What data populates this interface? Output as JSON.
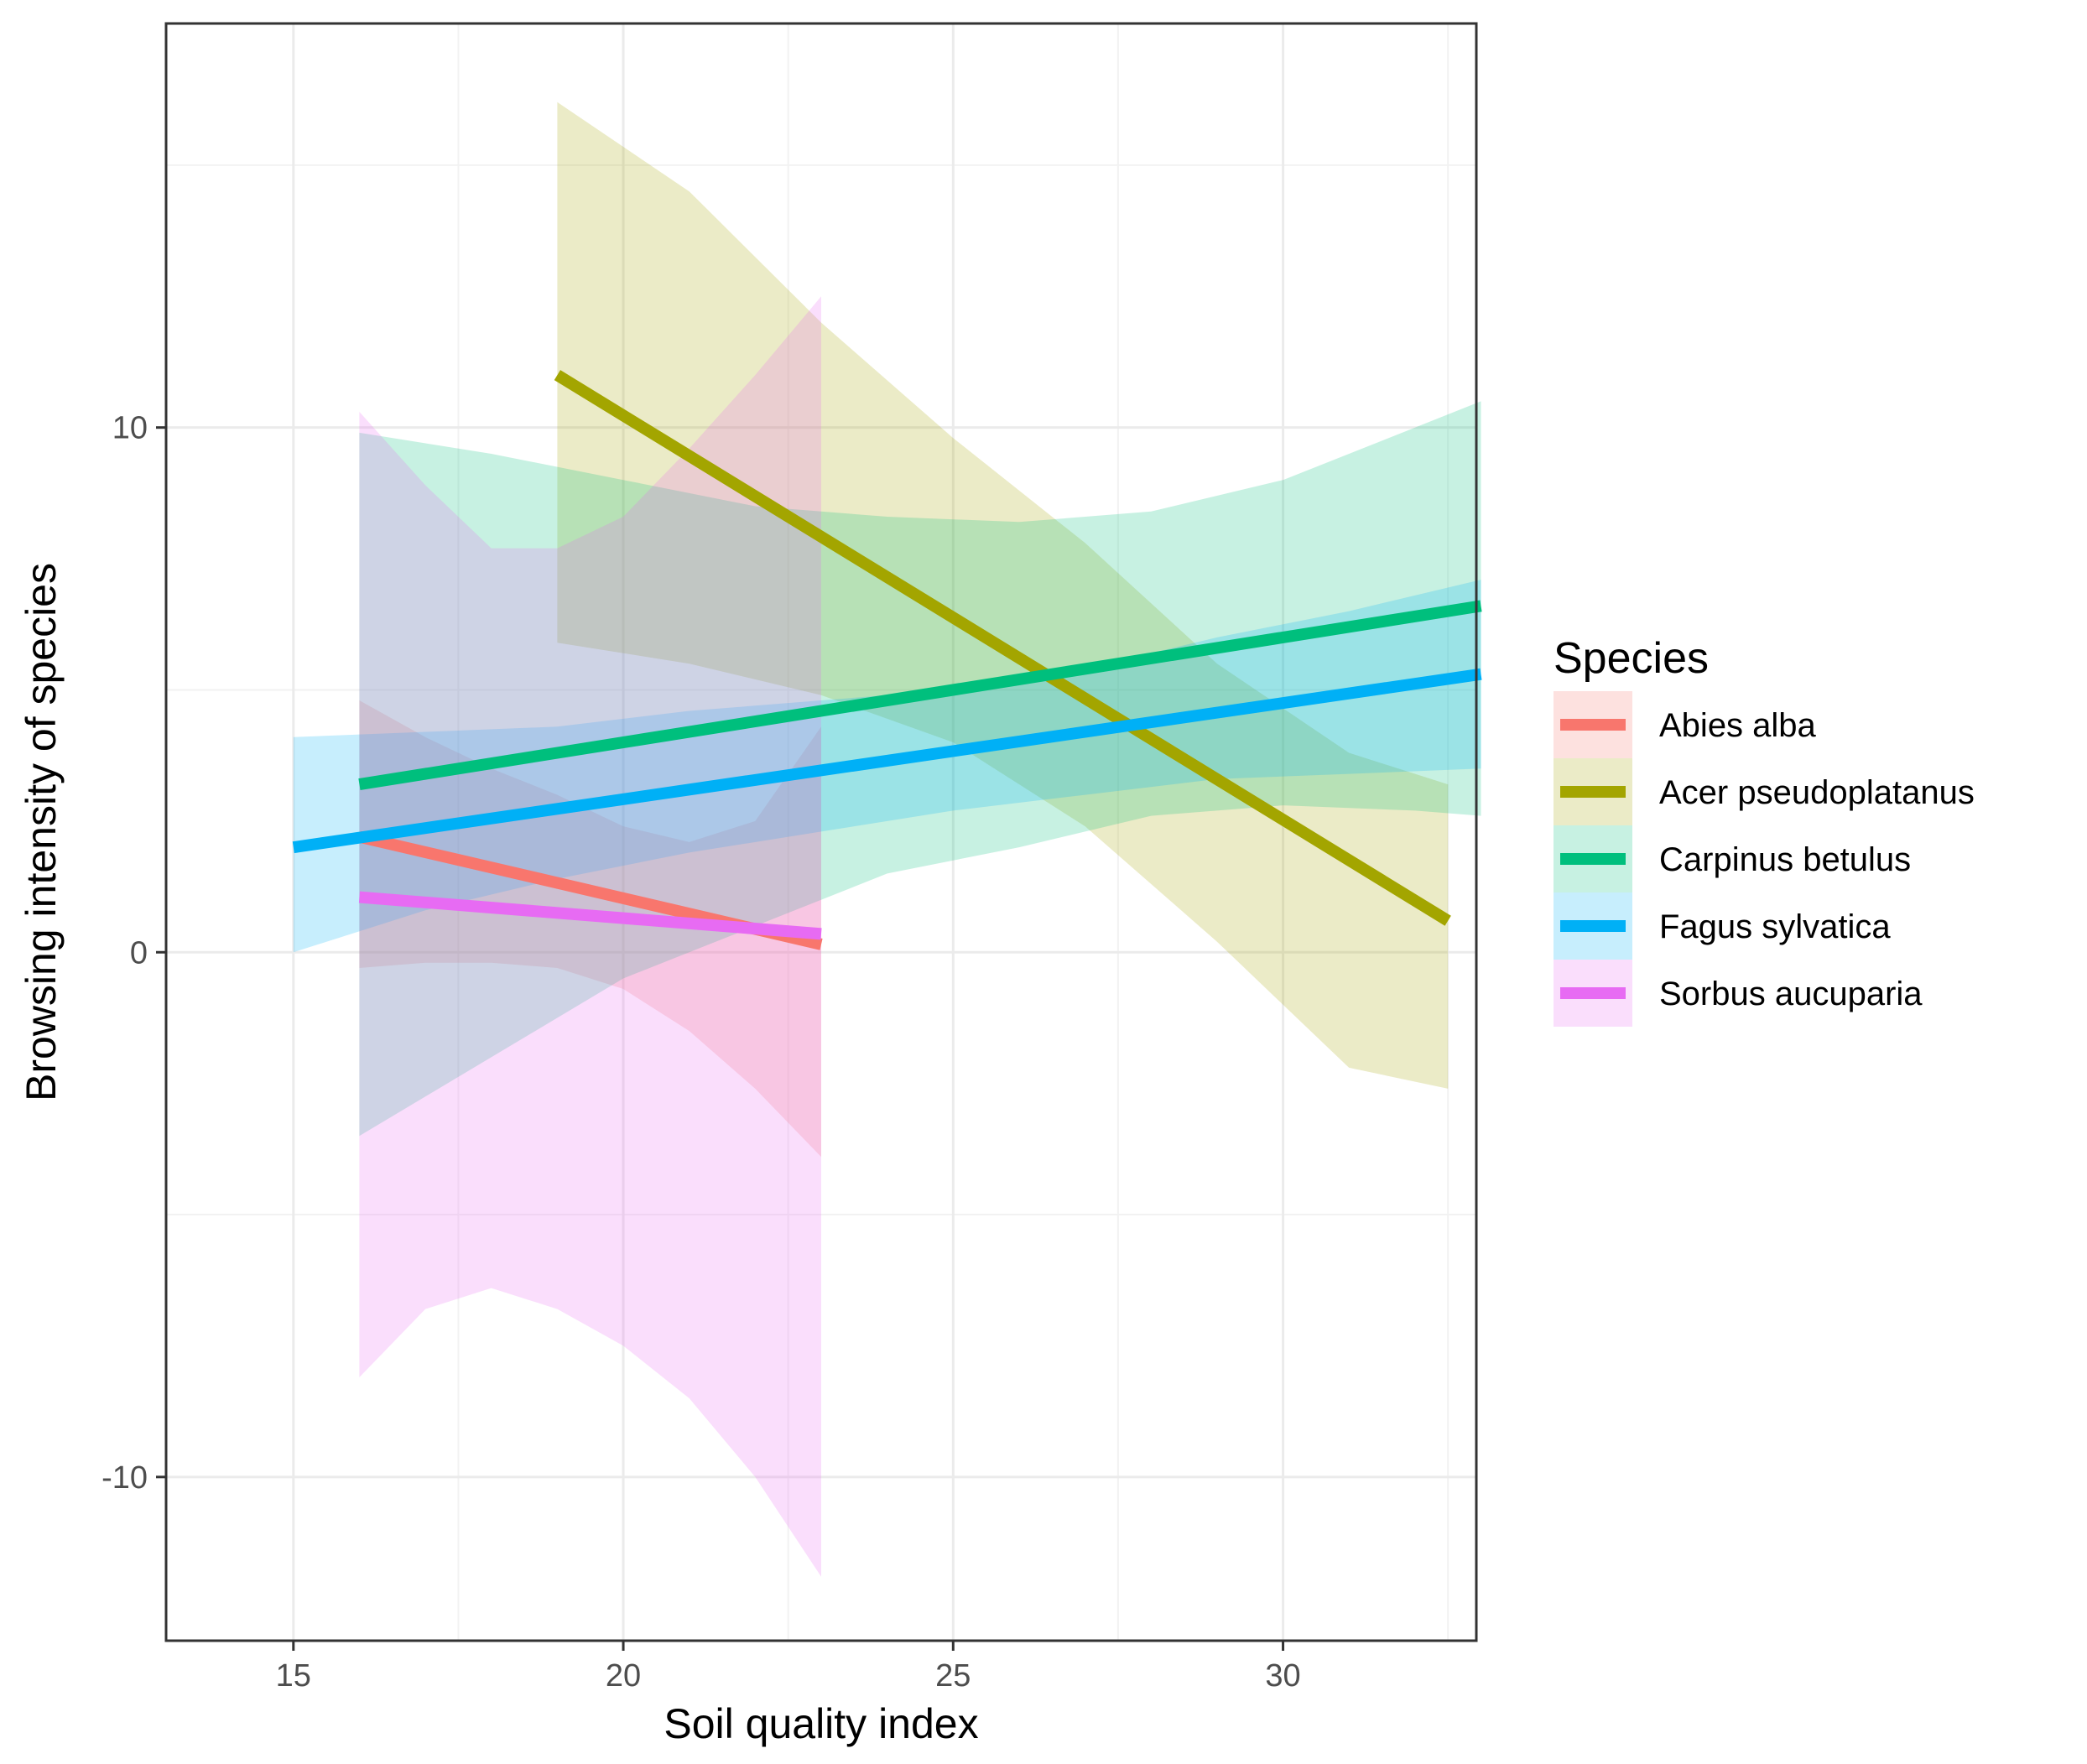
{
  "chart_data": {
    "type": "line",
    "title": "",
    "xlabel": "Soil quality index",
    "ylabel": "Browsing intensity of species",
    "xlim": [
      13.07,
      32.93
    ],
    "ylim": [
      -13.12,
      17.7
    ],
    "x_ticks": [
      15,
      20,
      25,
      30
    ],
    "x_tick_labels": [
      "15",
      "20",
      "25",
      "30"
    ],
    "y_ticks": [
      -10,
      0,
      10
    ],
    "y_tick_labels": [
      "-10",
      "0",
      "10"
    ],
    "grid": true,
    "legend": {
      "title": "Species",
      "position": "right"
    },
    "series": [
      {
        "name": "Abies alba",
        "color": "#F8766D",
        "x": [
          16,
          23
        ],
        "y": [
          2.2,
          0.15
        ],
        "band_x": [
          16,
          17,
          18,
          19,
          20,
          21,
          22,
          23
        ],
        "band_lower": [
          -0.3,
          -0.2,
          -0.2,
          -0.3,
          -0.7,
          -1.5,
          -2.6,
          -3.9
        ],
        "band_upper": [
          4.8,
          4.1,
          3.5,
          3.0,
          2.4,
          2.1,
          2.5,
          4.3
        ]
      },
      {
        "name": "Acer pseudoplatanus",
        "color": "#A3A500",
        "x": [
          19,
          32.5
        ],
        "y": [
          11.0,
          0.6
        ],
        "band_x": [
          19,
          21,
          23,
          25,
          27,
          29,
          31,
          32.5
        ],
        "band_lower": [
          5.9,
          5.5,
          4.9,
          4.0,
          2.4,
          0.2,
          -2.2,
          -2.6
        ],
        "band_upper": [
          16.2,
          14.5,
          12.0,
          9.8,
          7.8,
          5.5,
          3.8,
          3.2
        ]
      },
      {
        "name": "Carpinus betulus",
        "color": "#00BF7D",
        "x": [
          16,
          33
        ],
        "y": [
          3.2,
          6.6
        ],
        "band_x": [
          16,
          18,
          20,
          22,
          24,
          26,
          28,
          30,
          32,
          33
        ],
        "band_lower": [
          -3.5,
          -2.0,
          -0.5,
          0.5,
          1.5,
          2.0,
          2.6,
          2.8,
          2.7,
          2.6
        ],
        "band_upper": [
          9.9,
          9.5,
          9.0,
          8.5,
          8.3,
          8.2,
          8.4,
          9.0,
          10.0,
          10.5
        ]
      },
      {
        "name": "Fagus sylvatica",
        "color": "#00B0F6",
        "x": [
          15,
          33
        ],
        "y": [
          2.0,
          5.3
        ],
        "band_x": [
          15,
          17,
          19,
          21,
          23,
          25,
          27,
          29,
          31,
          33
        ],
        "band_lower": [
          0.0,
          0.8,
          1.4,
          1.9,
          2.3,
          2.7,
          3.0,
          3.3,
          3.4,
          3.5
        ],
        "band_upper": [
          4.1,
          4.2,
          4.3,
          4.6,
          4.8,
          5.0,
          5.4,
          6.0,
          6.5,
          7.1
        ]
      },
      {
        "name": "Sorbus aucuparia",
        "color": "#E76BF3",
        "x": [
          16,
          23
        ],
        "y": [
          1.05,
          0.35
        ],
        "band_x": [
          16,
          17,
          18,
          19,
          20,
          21,
          22,
          23
        ],
        "band_lower": [
          -8.1,
          -6.8,
          -6.4,
          -6.8,
          -7.5,
          -8.5,
          -10.0,
          -11.9
        ],
        "band_upper": [
          10.3,
          8.9,
          7.7,
          7.7,
          8.3,
          9.6,
          11.0,
          12.5
        ]
      }
    ]
  }
}
